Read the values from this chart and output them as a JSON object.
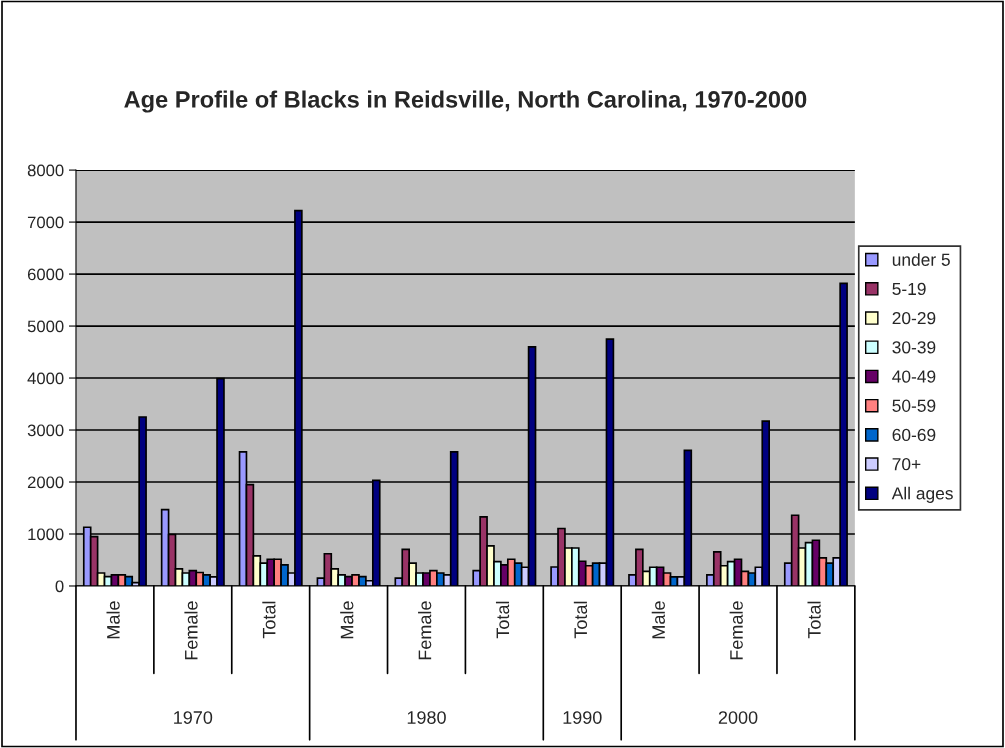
{
  "chart_data": {
    "type": "bar",
    "title": "Age Profile of Blacks in Reidsville, North Carolina, 1970-2000",
    "categories": [
      "Male",
      "Female",
      "Total",
      "Male",
      "Female",
      "Total",
      "Total",
      "Male",
      "Female",
      "Total"
    ],
    "annotations": [
      "1970",
      "1980",
      "1990",
      "2000"
    ],
    "series": [
      {
        "name": "under 5",
        "color": "#9999ff",
        "values": [
          1130,
          1470,
          2580,
          150,
          150,
          295,
          365,
          215,
          215,
          440
        ]
      },
      {
        "name": "5-19",
        "color": "#993366",
        "values": [
          950,
          990,
          1950,
          620,
          705,
          1330,
          1105,
          705,
          655,
          1360
        ]
      },
      {
        "name": "20-29",
        "color": "#ffffcc",
        "values": [
          250,
          330,
          580,
          330,
          440,
          770,
          730,
          280,
          390,
          730
        ]
      },
      {
        "name": "30-39",
        "color": "#ccffff",
        "values": [
          180,
          250,
          440,
          215,
          250,
          470,
          730,
          360,
          470,
          835
        ]
      },
      {
        "name": "40-49",
        "color": "#660066",
        "values": [
          215,
          295,
          515,
          180,
          250,
          405,
          475,
          360,
          515,
          880
        ]
      },
      {
        "name": "50-59",
        "color": "#ff8080",
        "values": [
          215,
          260,
          515,
          215,
          295,
          515,
          390,
          250,
          280,
          540
        ]
      },
      {
        "name": "60-69",
        "color": "#0066cc",
        "values": [
          180,
          215,
          405,
          180,
          250,
          440,
          440,
          175,
          250,
          440
        ]
      },
      {
        "name": "70+",
        "color": "#ccccff",
        "values": [
          65,
          175,
          250,
          100,
          215,
          360,
          440,
          175,
          360,
          540
        ]
      },
      {
        "name": "All ages",
        "color": "#000080",
        "values": [
          3250,
          3990,
          7220,
          2030,
          2580,
          4600,
          4750,
          2610,
          3170,
          5820
        ]
      }
    ],
    "ylim": [
      0,
      8000
    ],
    "yticks": [
      0,
      1000,
      2000,
      3000,
      4000,
      5000,
      6000,
      7000,
      8000
    ],
    "grid": "y",
    "legend": "right"
  }
}
